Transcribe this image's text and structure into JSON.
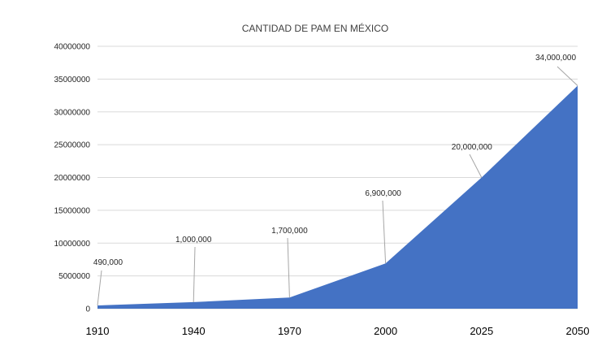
{
  "chart_data": {
    "type": "area",
    "title": "CANTIDAD DE PAM EN MÉXICO",
    "xlabel": "",
    "ylabel": "",
    "categories": [
      "1910",
      "1940",
      "1970",
      "2000",
      "2025",
      "2050"
    ],
    "values": [
      490000,
      1000000,
      1700000,
      6900000,
      20000000,
      34000000
    ],
    "data_labels": [
      "490,000",
      "1,000,000",
      "1,700,000",
      "6,900,000",
      "20,000,000",
      "34,000,000"
    ],
    "ylim": [
      0,
      40000000
    ],
    "yticks": [
      0,
      5000000,
      10000000,
      15000000,
      20000000,
      25000000,
      30000000,
      35000000,
      40000000
    ],
    "ytick_labels": [
      "0",
      "5000000",
      "10000000",
      "15000000",
      "20000000",
      "25000000",
      "30000000",
      "35000000",
      "40000000"
    ],
    "grid": true,
    "legend": "none",
    "colors": {
      "area": "#4472C4",
      "grid": "#D9D9D9",
      "leader": "#A6A6A6"
    }
  }
}
